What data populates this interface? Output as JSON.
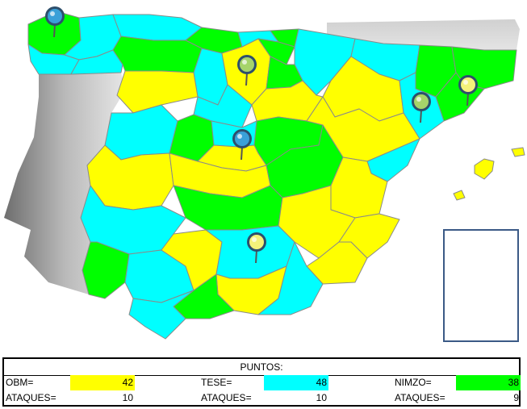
{
  "scoreboard": {
    "title": "PUNTOS:",
    "teams": [
      {
        "name": "OBM=",
        "points": "42",
        "attacks_label": "ATAQUES=",
        "attacks": "10",
        "color": "#ffff00"
      },
      {
        "name": "TESE=",
        "points": "48",
        "attacks_label": "ATAQUES=",
        "attacks": "10",
        "color": "#00ffff"
      },
      {
        "name": "NIMZO=",
        "points": "38",
        "attacks_label": "ATAQUES=",
        "attacks": "9",
        "color": "#00ff00"
      }
    ]
  },
  "colors": {
    "yellow": "#ffff00",
    "cyan": "#00ffff",
    "green": "#00ff00",
    "border": "#8a8a8a",
    "pin_blue": "#3aa0d8",
    "pin_green": "#a6d46a",
    "pin_yellow": "#f4f27a"
  },
  "map": {
    "pins": [
      {
        "name": "pin-galicia",
        "color": "blue"
      },
      {
        "name": "pin-burgos",
        "color": "green"
      },
      {
        "name": "pin-madrid",
        "color": "blue"
      },
      {
        "name": "pin-jaen",
        "color": "yellow"
      },
      {
        "name": "pin-barcelona",
        "color": "yellow"
      },
      {
        "name": "pin-lleida",
        "color": "green"
      }
    ]
  }
}
